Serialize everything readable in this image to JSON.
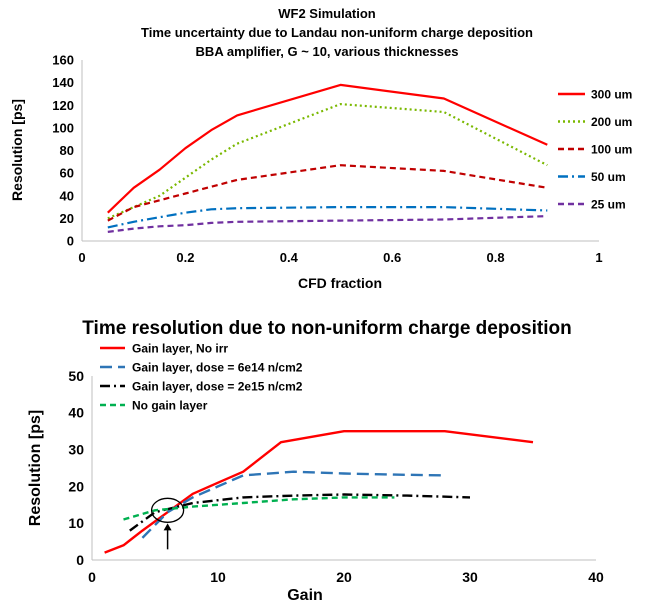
{
  "chart_data": [
    {
      "type": "line",
      "title": "WF2 Simulation",
      "subtitle_1": "Time uncertainty due to Landau non-uniform charge deposition",
      "subtitle_2": "BBA amplifier, G ~ 10, various thicknesses",
      "xlabel": "CFD fraction",
      "ylabel": "Resolution [ps]",
      "xlim": [
        0,
        1
      ],
      "ylim": [
        0,
        160
      ],
      "xticks": [
        "0",
        "0.2",
        "0.4",
        "0.6",
        "0.8",
        "1"
      ],
      "xtick_values": [
        0,
        0.2,
        0.4,
        0.6,
        0.8,
        1
      ],
      "yticks": [
        "0",
        "20",
        "40",
        "60",
        "80",
        "100",
        "120",
        "140",
        "160"
      ],
      "ytick_values": [
        0,
        20,
        40,
        60,
        80,
        100,
        120,
        140,
        160
      ],
      "grid": false,
      "legend_position": "right",
      "series": [
        {
          "name": "300 um",
          "color": "#ff0000",
          "dash": "solid",
          "x": [
            0.05,
            0.1,
            0.15,
            0.2,
            0.25,
            0.3,
            0.5,
            0.7,
            0.9
          ],
          "y": [
            25,
            47,
            63,
            82,
            98,
            111,
            138,
            126,
            85
          ]
        },
        {
          "name": "200 um",
          "color": "#7ab800",
          "dash": "dot",
          "x": [
            0.05,
            0.1,
            0.15,
            0.2,
            0.25,
            0.3,
            0.5,
            0.7,
            0.9
          ],
          "y": [
            20,
            30,
            40,
            56,
            72,
            86,
            121,
            114,
            67
          ]
        },
        {
          "name": "100 um",
          "color": "#c00000",
          "dash": "dash",
          "x": [
            0.05,
            0.1,
            0.15,
            0.2,
            0.25,
            0.3,
            0.5,
            0.7,
            0.9
          ],
          "y": [
            18,
            30,
            36,
            42,
            48,
            54,
            67,
            62,
            47
          ]
        },
        {
          "name": "50 um",
          "color": "#0070c0",
          "dash": "dashdot",
          "x": [
            0.05,
            0.1,
            0.15,
            0.2,
            0.25,
            0.3,
            0.5,
            0.7,
            0.9
          ],
          "y": [
            12,
            17,
            21,
            25,
            28,
            29,
            30,
            30,
            27
          ]
        },
        {
          "name": "25 um",
          "color": "#7030a0",
          "dash": "dash",
          "x": [
            0.05,
            0.1,
            0.15,
            0.2,
            0.25,
            0.3,
            0.5,
            0.7,
            0.9
          ],
          "y": [
            8,
            11,
            13,
            14,
            16,
            17,
            18,
            19,
            22
          ]
        }
      ]
    },
    {
      "type": "line",
      "title": "Time resolution due to non-uniform charge deposition",
      "xlabel": "Gain",
      "ylabel": "Resolution [ps]",
      "xlim": [
        0,
        40
      ],
      "ylim": [
        0,
        50
      ],
      "xticks": [
        "0",
        "10",
        "20",
        "30",
        "40"
      ],
      "xtick_values": [
        0,
        10,
        20,
        30,
        40
      ],
      "yticks": [
        "0",
        "10",
        "20",
        "30",
        "40",
        "50"
      ],
      "ytick_values": [
        0,
        10,
        20,
        30,
        40,
        50
      ],
      "grid": false,
      "legend_position": "top-left",
      "annotation": "circle with upward arrow marking the crossing point near gain 6",
      "series": [
        {
          "name": "Gain layer, No irr",
          "color": "#ff0000",
          "dash": "solid",
          "x": [
            1,
            2.5,
            4,
            6,
            8,
            10,
            12,
            15,
            20,
            28,
            35
          ],
          "y": [
            2,
            4,
            8,
            13,
            18,
            21,
            24,
            32,
            35,
            35,
            32
          ]
        },
        {
          "name": "Gain layer, dose = 6e14 n/cm2",
          "color": "#2e75b6",
          "dash": "longdash",
          "x": [
            4,
            6,
            8,
            10,
            12,
            16,
            20,
            24,
            28
          ],
          "y": [
            6,
            13,
            17,
            20,
            23,
            24,
            23.5,
            23.2,
            23
          ]
        },
        {
          "name": "Gain layer, dose = 2e15 n/cm2",
          "color": "#000000",
          "dash": "dashdot",
          "x": [
            3,
            5,
            8,
            12,
            16,
            20,
            25,
            30
          ],
          "y": [
            8,
            13,
            15.5,
            17,
            17.5,
            17.8,
            17.5,
            17
          ]
        },
        {
          "name": "No gain layer",
          "color": "#00b050",
          "dash": "dash",
          "x": [
            2.5,
            5,
            8,
            12,
            16,
            20,
            24
          ],
          "y": [
            11,
            13.5,
            14.5,
            15.5,
            16.5,
            17,
            17
          ]
        }
      ]
    }
  ]
}
